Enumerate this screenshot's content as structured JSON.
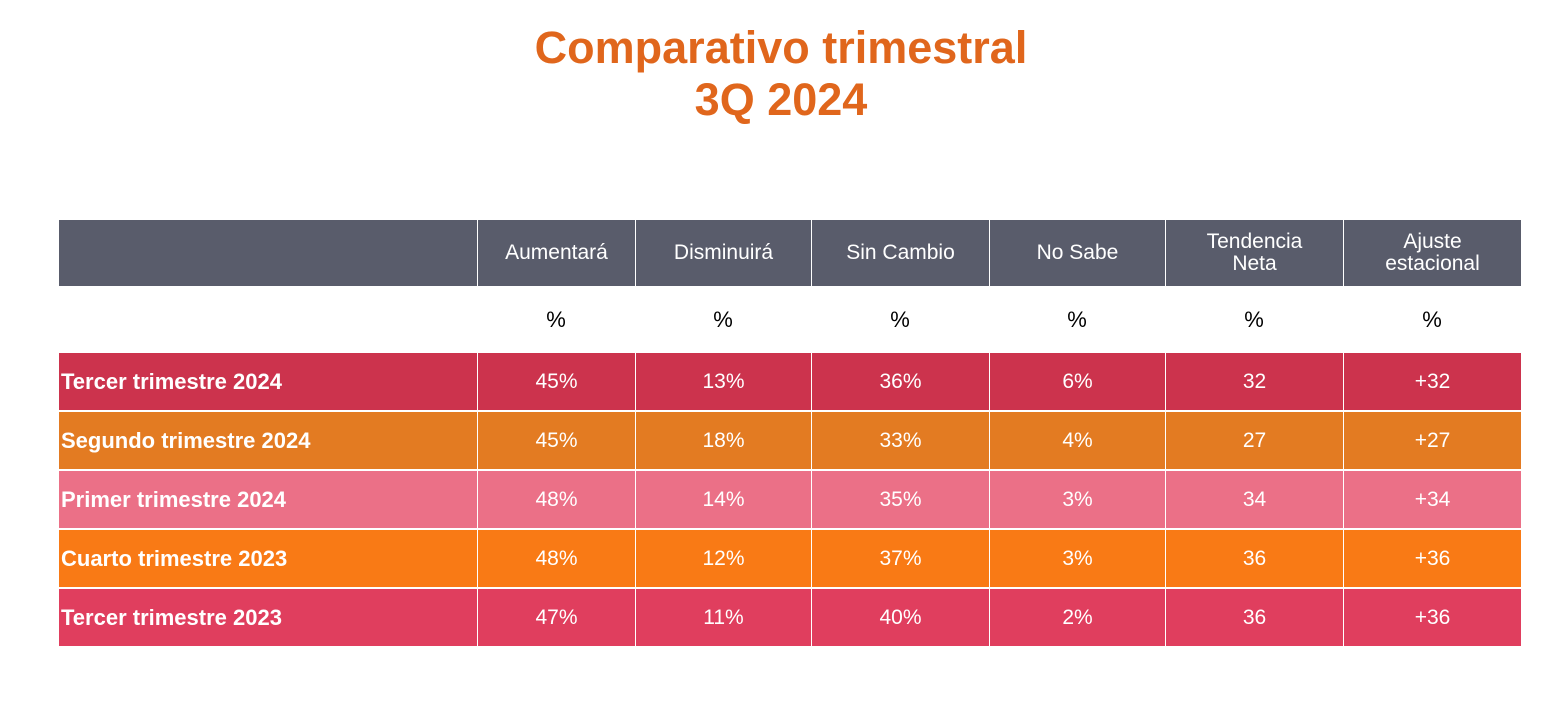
{
  "title": {
    "line1": "Comparativo trimestral",
    "line2": "3Q 2024"
  },
  "chart_data": {
    "type": "table",
    "title": "Comparativo trimestral 3Q 2024",
    "columns": [
      "",
      "Aumentará",
      "Disminuirá",
      "Sin Cambio",
      "No Sabe",
      "Tendencia Neta",
      "Ajuste estacional"
    ],
    "column_lines": [
      [
        ""
      ],
      [
        "Aumentará"
      ],
      [
        "Disminuirá"
      ],
      [
        "Sin Cambio"
      ],
      [
        "No Sabe"
      ],
      [
        "Tendencia",
        "Neta"
      ],
      [
        "Ajuste",
        "estacional"
      ]
    ],
    "units": [
      "",
      "%",
      "%",
      "%",
      "%",
      "%",
      "%"
    ],
    "rows": [
      {
        "label": "Tercer trimestre 2024",
        "color": "#cc334d",
        "values": [
          "45%",
          "13%",
          "36%",
          "6%",
          "32",
          "+32"
        ]
      },
      {
        "label": "Segundo trimestre 2024",
        "color": "#e37b22",
        "values": [
          "45%",
          "18%",
          "33%",
          "4%",
          "27",
          "+27"
        ]
      },
      {
        "label": "Primer trimestre 2024",
        "color": "#eb7087",
        "values": [
          "48%",
          "14%",
          "35%",
          "3%",
          "34",
          "+34"
        ]
      },
      {
        "label": "Cuarto trimestre 2023",
        "color": "#f97a15",
        "values": [
          "48%",
          "12%",
          "37%",
          "3%",
          "36",
          "+36"
        ]
      },
      {
        "label": "Tercer trimestre 2023",
        "color": "#e03e5e",
        "values": [
          "47%",
          "11%",
          "40%",
          "2%",
          "36",
          "+36"
        ]
      }
    ]
  },
  "colors": {
    "title": "#e0661c",
    "header_bg": "#595c6b"
  }
}
